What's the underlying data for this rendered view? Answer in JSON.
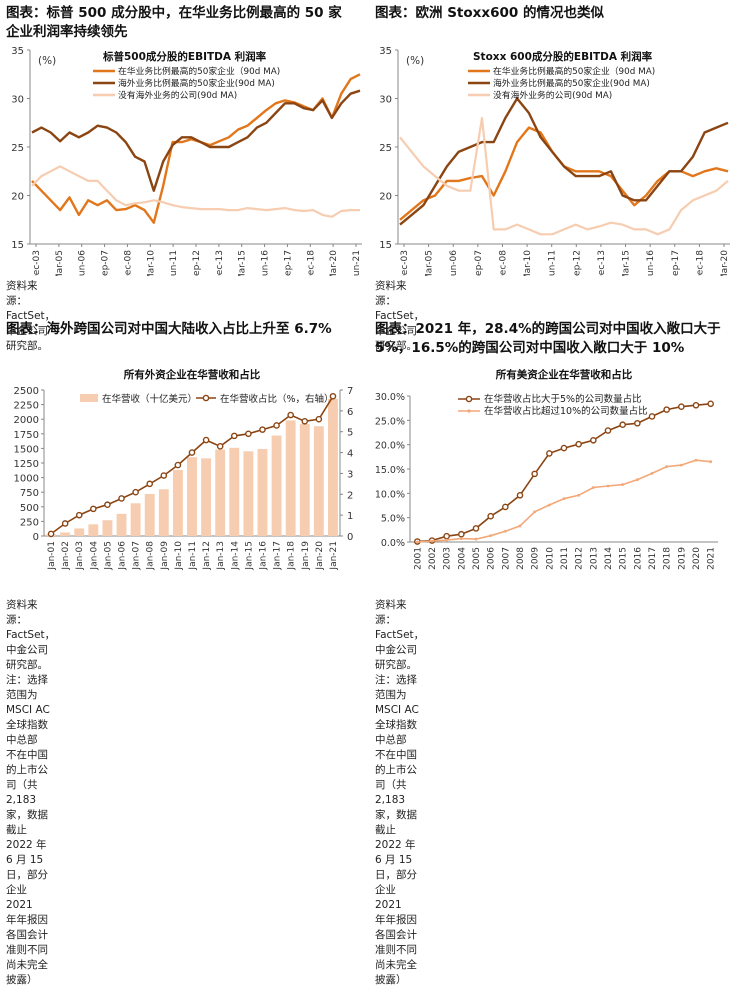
{
  "panels": [
    {
      "title_line1": "图表：标普 500 成分股中，在华业务比例最高的 50 家",
      "title_line2": "企业利润率持续领先",
      "source": "资料来源：FactSet，中金公司研究部。"
    },
    {
      "title_line1": "图表：欧洲 Stoxx600 的情况也类似",
      "source": "资料来源：FactSet，中金公司研究部。"
    },
    {
      "title_line1": "图表：海外跨国公司对中国大陆收入占比上升至 6.7%",
      "source_line1": "资料来源：FactSet，中金公司研究部。注：选择范围为 MSCI AC 全球指数中总部",
      "source_line2": "不在中国的上市公司（共 2,183 家，数据截止 2022 年 6 月 15 日，部分企业 2021",
      "source_line3": "年年报因各国会计准则不同尚未完全披露）"
    },
    {
      "title_line1": "图表：2021 年，28.4%的跨国公司对中国收入敞口大于",
      "title_line2": "5%，16.5%的跨国公司对中国收入敞口大于 10%",
      "source_line1": "资料来源：FactSet，中金公司研究部。注：选择范围为 MSCI AC 全球指数中总部",
      "source_line2": "不在中国的上市公司（共 2,183 家，数据截止 2022 年 6 月 15 日，部分企业 2021",
      "source_line3": "年年报因各国会计准则不同尚未完全披露）"
    }
  ],
  "chart_data": [
    {
      "type": "line",
      "title": "标普500成分股的EBITDA 利润率",
      "unit_label": "(%)",
      "x_ticks": [
        "Dec-03",
        "Mar-05",
        "Jun-06",
        "Sep-07",
        "Dec-08",
        "Mar-10",
        "Jun-11",
        "Sep-12",
        "Dec-13",
        "Mar-15",
        "Jun-16",
        "Sep-17",
        "Dec-18",
        "Mar-20",
        "Jun-21"
      ],
      "ylim": [
        15,
        35
      ],
      "y_ticks": [
        15,
        20,
        25,
        30,
        35
      ],
      "colors": [
        "#E2761B",
        "#8B4513",
        "#F6CDB0"
      ],
      "series": [
        {
          "name": "在华业务比例最高的50家企业（90d MA)",
          "values": [
            21.5,
            20.5,
            19.5,
            18.5,
            19.8,
            18.0,
            19.5,
            19.0,
            19.5,
            18.5,
            18.6,
            19.0,
            18.5,
            17.2,
            21.0,
            25.5,
            25.5,
            25.8,
            25.5,
            25.2,
            25.6,
            26.0,
            26.8,
            27.2,
            28.0,
            28.8,
            29.5,
            29.8,
            29.6,
            29.2,
            28.8,
            30.0,
            28.0,
            30.5,
            32.0,
            32.5
          ]
        },
        {
          "name": "海外业务比例最高的50家企业(90d MA)",
          "values": [
            26.5,
            27.0,
            26.5,
            25.6,
            26.5,
            26.0,
            26.5,
            27.2,
            27.0,
            26.5,
            25.5,
            24.0,
            23.5,
            20.5,
            23.5,
            25.2,
            26.0,
            26.0,
            25.5,
            25.0,
            25.0,
            25.0,
            25.5,
            26.0,
            27.0,
            27.5,
            28.5,
            29.5,
            29.5,
            29.0,
            28.8,
            29.8,
            28.0,
            29.5,
            30.5,
            30.8
          ]
        },
        {
          "name": "没有海外业务的公司(90d MA)",
          "values": [
            21.0,
            22.0,
            22.5,
            23.0,
            22.5,
            22.0,
            21.5,
            21.5,
            20.5,
            19.5,
            19.0,
            19.2,
            19.3,
            19.5,
            19.3,
            19.0,
            18.8,
            18.7,
            18.6,
            18.6,
            18.6,
            18.5,
            18.5,
            18.7,
            18.6,
            18.5,
            18.6,
            18.7,
            18.5,
            18.4,
            18.5,
            18.0,
            17.8,
            18.4,
            18.5,
            18.5
          ]
        }
      ]
    },
    {
      "type": "line",
      "title": "Stoxx 600成分股的EBITDA 利润率",
      "unit_label": "(%)",
      "x_ticks": [
        "Dec-03",
        "Mar-05",
        "Jun-06",
        "Sep-07",
        "Dec-08",
        "Mar-10",
        "Jun-11",
        "Sep-12",
        "Dec-13",
        "Mar-15",
        "Jun-16",
        "Sep-17",
        "Dec-18",
        "Mar-20"
      ],
      "ylim": [
        15,
        35
      ],
      "y_ticks": [
        15,
        20,
        25,
        30,
        35
      ],
      "colors": [
        "#E2761B",
        "#8B4513",
        "#F6CDB0"
      ],
      "series": [
        {
          "name": "在华业务比例最高的50家企业（90d MA)",
          "values": [
            17.5,
            18.5,
            19.5,
            20.0,
            21.5,
            21.5,
            21.8,
            22.0,
            20.0,
            22.5,
            25.5,
            27.0,
            26.5,
            24.5,
            23.0,
            22.5,
            22.5,
            22.5,
            22.0,
            20.5,
            19.0,
            20.0,
            21.5,
            22.5,
            22.5,
            22.0,
            22.5,
            22.8,
            22.5
          ]
        },
        {
          "name": "海外业务比例最高的50家企业(90d MA)",
          "values": [
            17.0,
            18.0,
            19.0,
            21.0,
            23.0,
            24.5,
            25.0,
            25.5,
            25.5,
            28.0,
            30.0,
            28.5,
            26.0,
            24.5,
            23.0,
            22.0,
            22.0,
            22.0,
            22.5,
            20.0,
            19.5,
            19.5,
            21.0,
            22.5,
            22.5,
            24.0,
            26.5,
            27.0,
            27.5
          ]
        },
        {
          "name": "没有海外业务的公司(90d MA)",
          "values": [
            26.0,
            24.5,
            23.0,
            22.0,
            21.0,
            20.5,
            20.5,
            28.0,
            16.5,
            16.5,
            17.0,
            16.5,
            16.0,
            16.0,
            16.5,
            17.0,
            16.5,
            16.8,
            17.2,
            17.0,
            16.5,
            16.5,
            16.0,
            16.5,
            18.5,
            19.5,
            20.0,
            20.5,
            21.5
          ]
        }
      ]
    },
    {
      "type": "bar",
      "title": "所有外资企业在华营收和占比",
      "categories": [
        "Jan-01",
        "Jan-02",
        "Jan-03",
        "Jan-04",
        "Jan-05",
        "Jan-06",
        "Jan-07",
        "Jan-08",
        "Jan-09",
        "Jan-10",
        "Jan-11",
        "Jan-12",
        "Jan-13",
        "Jan-14",
        "Jan-15",
        "Jan-16",
        "Jan-17",
        "Jan-18",
        "Jan-19",
        "Jan-20",
        "Jan-21"
      ],
      "ylim": [
        0,
        2500
      ],
      "y_ticks": [
        0,
        250,
        500,
        750,
        1000,
        1250,
        1500,
        1750,
        2000,
        2250,
        2500
      ],
      "y2lim": [
        0,
        7
      ],
      "y2_ticks": [
        0,
        1,
        2,
        3,
        4,
        5,
        6,
        7
      ],
      "colors": [
        "#F6CDB0",
        "#8B4513"
      ],
      "series": [
        {
          "name": "在华营收（十亿美元）",
          "axis": "left",
          "values": [
            30,
            60,
            130,
            200,
            270,
            380,
            560,
            720,
            800,
            1130,
            1350,
            1330,
            1480,
            1510,
            1450,
            1490,
            1720,
            1980,
            1920,
            1880,
            2350
          ]
        },
        {
          "name": "在华营收占比（%，右轴）",
          "axis": "right",
          "values": [
            0.1,
            0.6,
            1.0,
            1.3,
            1.5,
            1.8,
            2.1,
            2.5,
            2.9,
            3.4,
            4.0,
            4.6,
            4.3,
            4.8,
            4.9,
            5.1,
            5.3,
            5.8,
            5.5,
            5.6,
            6.7
          ]
        }
      ]
    },
    {
      "type": "line",
      "title": "所有美资企业在华营收和占比",
      "categories": [
        "2001",
        "2002",
        "2003",
        "2004",
        "2005",
        "2006",
        "2007",
        "2008",
        "2009",
        "2010",
        "2011",
        "2012",
        "2013",
        "2014",
        "2015",
        "2016",
        "2017",
        "2018",
        "2019",
        "2020",
        "2021"
      ],
      "ylim": [
        0,
        30
      ],
      "y_ticks": [
        "0.0%",
        "5.0%",
        "10.0%",
        "15.0%",
        "20.0%",
        "25.0%",
        "30.0%"
      ],
      "colors": [
        "#8B4513",
        "#F2A878"
      ],
      "series": [
        {
          "name": "在华营收占比大于5%的公司数量占比",
          "values": [
            0.1,
            0.3,
            1.2,
            1.6,
            2.8,
            5.3,
            7.2,
            9.6,
            14.0,
            18.2,
            19.3,
            20.1,
            20.9,
            22.9,
            24.1,
            24.4,
            25.8,
            27.2,
            27.8,
            28.1,
            28.4
          ]
        },
        {
          "name": "在华营收占比超过10%的公司数量占比",
          "values": [
            0.0,
            0.2,
            0.4,
            0.7,
            0.6,
            1.3,
            2.2,
            3.3,
            6.2,
            7.6,
            8.9,
            9.6,
            11.2,
            11.5,
            11.8,
            12.8,
            14.1,
            15.5,
            15.8,
            16.8,
            16.5
          ]
        }
      ]
    }
  ]
}
